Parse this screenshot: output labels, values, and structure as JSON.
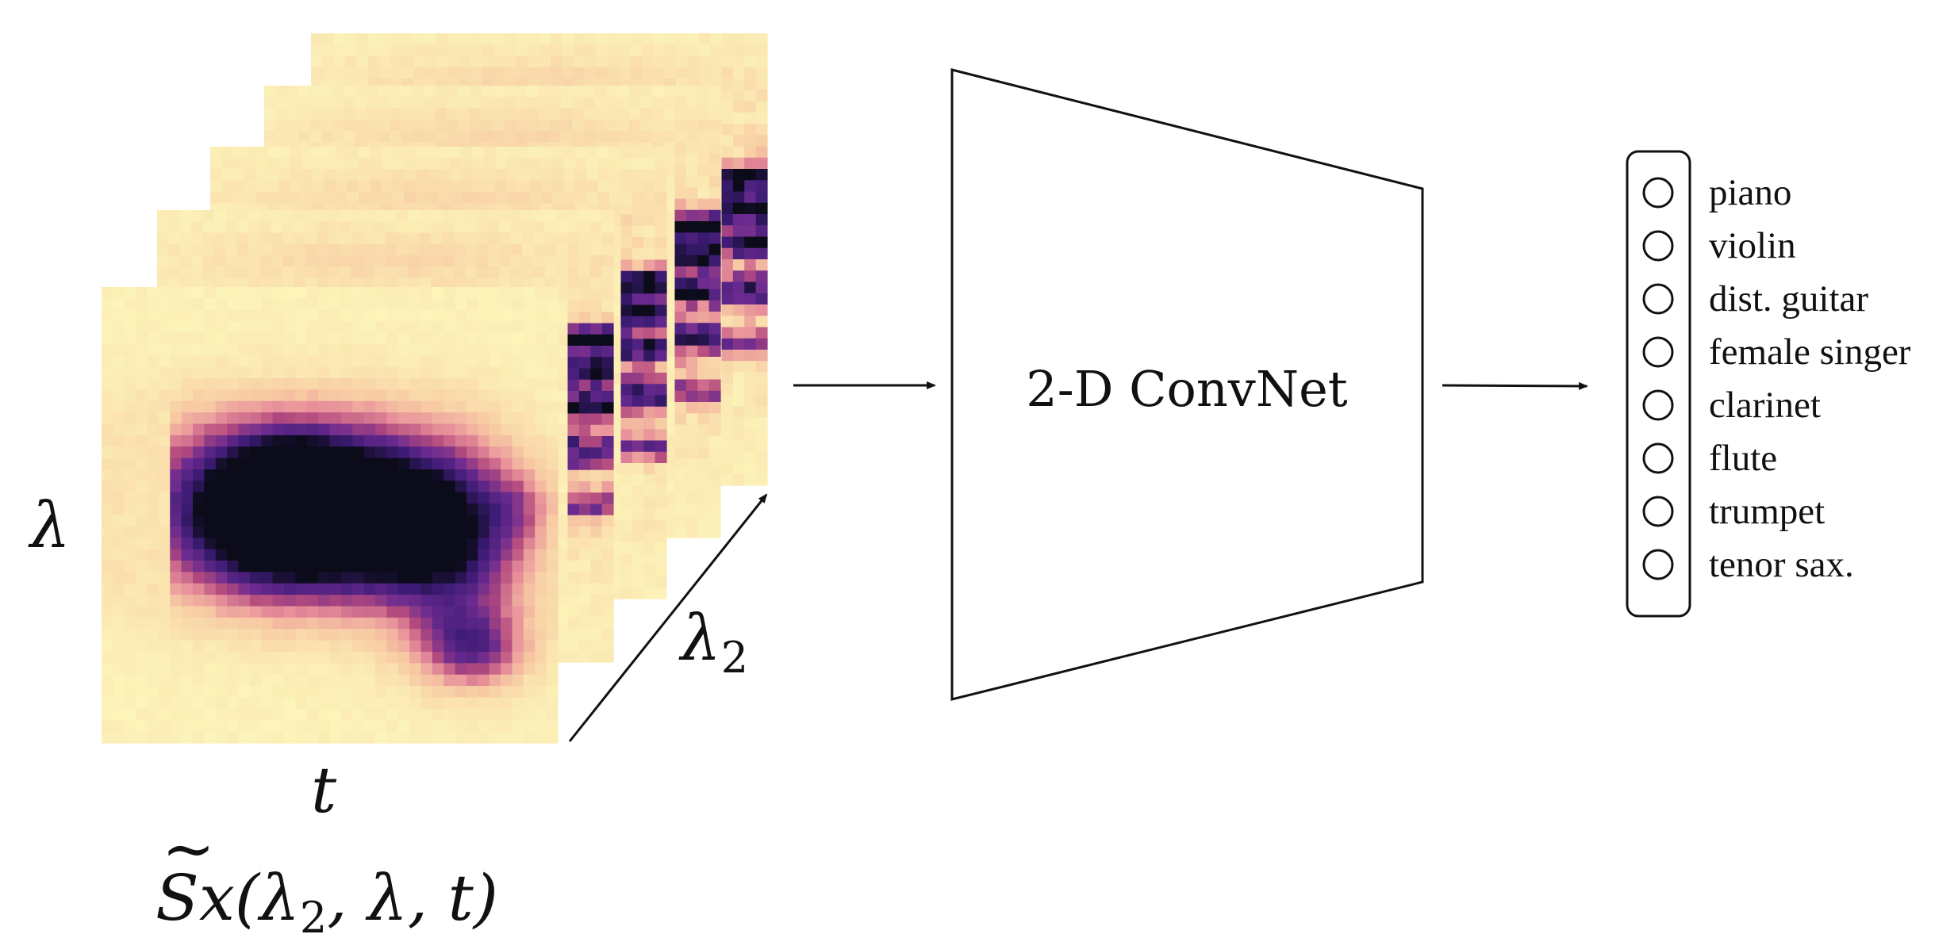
{
  "input": {
    "axis_frequency": "λ",
    "axis_time": "t",
    "axis_depth_main": "λ",
    "axis_depth_sub": "2",
    "formula": {
      "head": "S",
      "tilde": "~",
      "x": "x(",
      "l": "λ",
      "sub": "2",
      "tail": ", λ, t)"
    },
    "colormap": [
      "#fcfdbf",
      "#fbe5b0",
      "#f7c9a3",
      "#e8909a",
      "#b2497e",
      "#6a2a8f",
      "#3b1b73",
      "#0b0b1a"
    ]
  },
  "network": {
    "label": "2-D ConvNet"
  },
  "classes": [
    "piano",
    "violin",
    "dist. guitar",
    "female singer",
    "clarinet",
    "flute",
    "trumpet",
    "tenor sax."
  ]
}
